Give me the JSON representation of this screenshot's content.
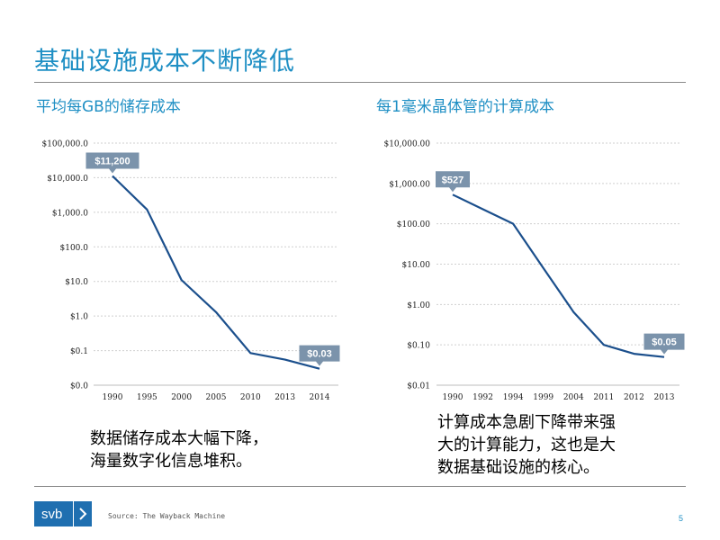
{
  "slide_title": "基础设施成本不断降低",
  "chart_data": [
    {
      "type": "line",
      "title": "平均每GB的储存成本",
      "y_scale": "log",
      "categories": [
        "1990",
        "1995",
        "2000",
        "2005",
        "2010",
        "2013",
        "2014"
      ],
      "y_tick_labels": [
        "$0.0",
        "$0.1",
        "$1.0",
        "$10.0",
        "$100.0",
        "$1,000.0",
        "$10,000.0",
        "$100,000.0"
      ],
      "series": [
        {
          "values": [
            11200,
            1200,
            11,
            1.3,
            0.085,
            0.055,
            0.03
          ]
        }
      ],
      "annotations": [
        {
          "point_index": 0,
          "text": "$11,200"
        },
        {
          "point_index": 6,
          "text": "$0.03"
        }
      ],
      "grid": true,
      "color": "#1b4f8c"
    },
    {
      "type": "line",
      "title": "每1毫米晶体管的计算成本",
      "y_scale": "log",
      "categories": [
        "1990",
        "1992",
        "1994",
        "1999",
        "2004",
        "2011",
        "2012",
        "2013"
      ],
      "y_tick_labels": [
        "$0.01",
        "$0.10",
        "$1.00",
        "$10.00",
        "$100.00",
        "$1,000.00",
        "$10,000.00"
      ],
      "series": [
        {
          "values": [
            527,
            230,
            100,
            8,
            0.65,
            0.1,
            0.06,
            0.05
          ]
        }
      ],
      "annotations": [
        {
          "point_index": 0,
          "text": "$527"
        },
        {
          "point_index": 7,
          "text": "$0.05"
        }
      ],
      "grid": true,
      "color": "#1b4f8c"
    }
  ],
  "captions": {
    "left": [
      "数据储存成本大幅下降，",
      "海量数字化信息堆积。"
    ],
    "right": [
      "计算成本急剧下降带来强",
      "大的计算能力，这也是大",
      "数据基础设施的核心。"
    ]
  },
  "footer": {
    "logo_text": "svb",
    "logo_icon": "chevron-right-icon",
    "source": "Source: The Wayback Machine",
    "page_number": "5"
  },
  "colors": {
    "title_blue": "#1f8fc4",
    "line_navy": "#1b4f8c",
    "callout_gray": "#7b93ab",
    "logo_blue": "#1f6fb0"
  }
}
